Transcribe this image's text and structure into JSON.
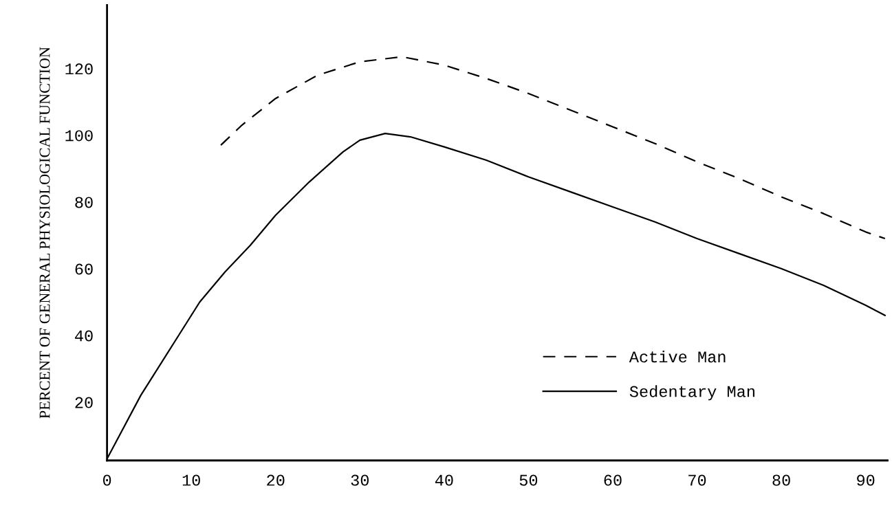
{
  "chart_data": {
    "type": "line",
    "ylabel": "PERCENT OF GENERAL PHYSIOLOGICAL FUNCTION",
    "xlim": [
      0,
      92.6
    ],
    "ylim": [
      2.5,
      139
    ],
    "xticks": [
      0,
      10,
      20,
      30,
      40,
      50,
      60,
      70,
      80,
      90
    ],
    "yticks": [
      20,
      40,
      60,
      80,
      100,
      120
    ],
    "grid": false,
    "legend": "bottom right",
    "series": [
      {
        "name": "Active Man",
        "color": "#000000",
        "line_style": "dashed",
        "x": [
          13.5,
          16,
          20,
          25,
          30,
          35,
          40,
          45,
          50,
          55,
          60,
          65,
          70,
          75,
          80,
          85,
          90,
          92.3
        ],
        "values": [
          97,
          103,
          111,
          118,
          122,
          123.5,
          121,
          117,
          112.5,
          107.5,
          102.5,
          97.5,
          92,
          87,
          81.5,
          76.5,
          71,
          69
        ]
      },
      {
        "name": "Sedentary Man",
        "color": "#000000",
        "line_style": "solid",
        "x": [
          0,
          4,
          8,
          11,
          14,
          17,
          20,
          24,
          28,
          30,
          33,
          36,
          40,
          45,
          50,
          55,
          60,
          65,
          70,
          75,
          80,
          85,
          90,
          92.3
        ],
        "values": [
          3,
          22,
          38,
          50,
          59,
          67,
          76,
          86,
          95,
          98.5,
          100.5,
          99.5,
          96.5,
          92.5,
          87.5,
          83,
          78.5,
          74,
          69,
          64.5,
          60,
          55,
          49,
          46
        ]
      }
    ]
  }
}
